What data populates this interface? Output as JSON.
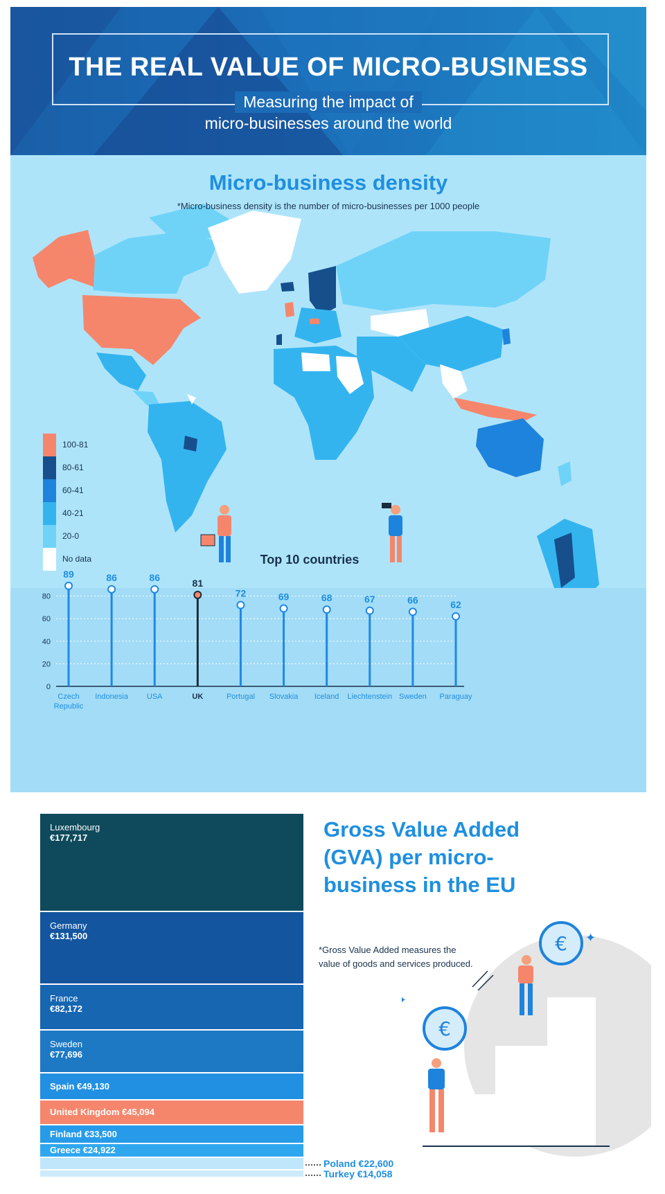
{
  "header": {
    "title": "THE REAL VALUE OF MICRO-BUSINESS",
    "subtitle_line1": "Measuring the impact of",
    "subtitle_line2": "micro-businesses around the world"
  },
  "density": {
    "title": "Micro-business density",
    "note": "*Micro-business density is the number of micro-businesses per 1000 people",
    "legend": [
      {
        "label": "100-81",
        "color": "#f5866c"
      },
      {
        "label": "80-61",
        "color": "#164f8c"
      },
      {
        "label": "60-41",
        "color": "#1e83dc"
      },
      {
        "label": "40-21",
        "color": "#34b4ef"
      },
      {
        "label": "20-0",
        "color": "#6fd3f8"
      },
      {
        "label": "No data",
        "color": "#ffffff"
      }
    ]
  },
  "colors": {
    "accent": "#1e8fe0",
    "highlight": "#f5866c",
    "dark_text": "#18324d",
    "stem": "#1e88e5",
    "stem_highlight": "#1a2b3c"
  },
  "chart_data": [
    {
      "type": "bar",
      "title": "Top 10 countries",
      "categories": [
        "Czech Republic",
        "Indonesia",
        "USA",
        "UK",
        "Portugal",
        "Slovakia",
        "Iceland",
        "Liechtenstein",
        "Sweden",
        "Paraguay"
      ],
      "category_lines": [
        [
          "Czech",
          "Republic"
        ],
        [
          "Indonesia"
        ],
        [
          "USA"
        ],
        [
          "UK"
        ],
        [
          "Portugal"
        ],
        [
          "Slovakia"
        ],
        [
          "Iceland"
        ],
        [
          "Liechtenstein"
        ],
        [
          "Sweden"
        ],
        [
          "Paraguay"
        ]
      ],
      "values": [
        89,
        86,
        86,
        81,
        72,
        69,
        68,
        67,
        66,
        62
      ],
      "highlight": "UK",
      "yticks": [
        0,
        20,
        40,
        60,
        80
      ],
      "ylim": [
        0,
        100
      ],
      "xlabel": "",
      "ylabel": ""
    },
    {
      "type": "bar",
      "title": "Gross Value Added (GVA) per micro-business in the EU",
      "note": "*Gross Value Added measures the value of goods and services produced.",
      "categories": [
        "Luxembourg",
        "Germany",
        "France",
        "Sweden",
        "Spain",
        "United Kingdom",
        "Finland",
        "Greece",
        "Poland",
        "Turkey"
      ],
      "value_labels": [
        "€177,717",
        "€131,500",
        "€82,172",
        "€77,696",
        "€49,130",
        "€45,094",
        "€33,500",
        "€24,922",
        "€22,600",
        "€14,058"
      ],
      "values": [
        177717,
        131500,
        82172,
        77696,
        49130,
        45094,
        33500,
        24922,
        22600,
        14058
      ],
      "colors": [
        "#0e4a5c",
        "#13559e",
        "#1766b2",
        "#1d79c4",
        "#2290e2",
        "#f5866c",
        "#279be9",
        "#2fa7ef",
        "#bfe6fb",
        "#cdebfc"
      ],
      "label_style": [
        "stacked",
        "stacked",
        "stacked",
        "stacked",
        "inline",
        "inline",
        "inline",
        "inline",
        "outside",
        "outside"
      ]
    }
  ]
}
